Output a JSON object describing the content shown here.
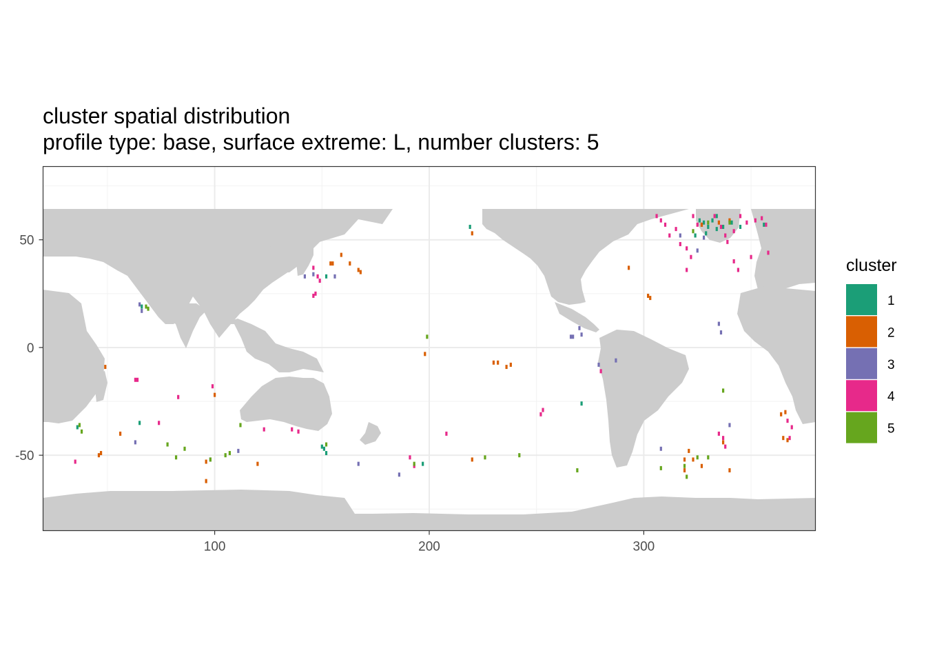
{
  "chart_data": {
    "type": "scatter",
    "title": "cluster spatial distribution",
    "subtitle": "profile type: base, surface extreme: L, number clusters: 5",
    "xlabel": "",
    "ylabel": "",
    "xlim": [
      20,
      380
    ],
    "ylim": [
      -85,
      84
    ],
    "x_ticks": [
      100,
      200,
      300
    ],
    "x_tick_labels": [
      "100",
      "200",
      "300"
    ],
    "y_ticks": [
      50,
      0,
      -50
    ],
    "y_tick_labels": [
      "50",
      "0",
      "-50"
    ],
    "grid": true,
    "background_map": "land masses in light grey (#cccccc)",
    "legend": {
      "title": "cluster",
      "position": "right",
      "entries": [
        {
          "label": "1",
          "color": "#1b9e77"
        },
        {
          "label": "2",
          "color": "#d95f02"
        },
        {
          "label": "3",
          "color": "#7570b3"
        },
        {
          "label": "4",
          "color": "#e7298a"
        },
        {
          "label": "5",
          "color": "#66a61e"
        }
      ]
    },
    "series": [
      {
        "name": "1",
        "points": [
          [
            66,
            19
          ],
          [
            150,
            -46
          ],
          [
            151,
            -47
          ],
          [
            152,
            -49
          ],
          [
            197,
            -54
          ],
          [
            219,
            56
          ],
          [
            271,
            -26
          ],
          [
            326,
            59
          ],
          [
            327,
            57
          ],
          [
            328,
            58
          ],
          [
            330,
            56
          ],
          [
            332,
            59
          ],
          [
            334,
            61
          ],
          [
            337,
            56
          ],
          [
            341,
            58
          ],
          [
            345,
            56
          ],
          [
            356,
            57
          ],
          [
            324,
            52
          ],
          [
            329,
            53
          ],
          [
            334,
            55
          ],
          [
            36,
            -37
          ],
          [
            65,
            -35
          ],
          [
            152,
            33
          ]
        ]
      },
      {
        "name": "2",
        "points": [
          [
            49,
            -9
          ],
          [
            46,
            -50
          ],
          [
            47,
            -49
          ],
          [
            56,
            -40
          ],
          [
            96,
            -53
          ],
          [
            96,
            -62
          ],
          [
            100,
            -22
          ],
          [
            120,
            -54
          ],
          [
            154,
            39
          ],
          [
            155,
            39
          ],
          [
            159,
            43
          ],
          [
            163,
            39
          ],
          [
            167,
            36
          ],
          [
            168,
            35
          ],
          [
            198,
            -3
          ],
          [
            220,
            53
          ],
          [
            220,
            -52
          ],
          [
            230,
            -7
          ],
          [
            232,
            -7
          ],
          [
            236,
            -9
          ],
          [
            238,
            -8
          ],
          [
            293,
            37
          ],
          [
            302,
            24
          ],
          [
            303,
            23
          ],
          [
            319,
            -52
          ],
          [
            321,
            -48
          ],
          [
            323,
            -52
          ],
          [
            319,
            -57
          ],
          [
            327,
            -55
          ],
          [
            337,
            -44
          ],
          [
            340,
            -57
          ],
          [
            364,
            -31
          ],
          [
            366,
            -30
          ],
          [
            365,
            -42
          ],
          [
            367,
            -43
          ],
          [
            327,
            57
          ],
          [
            340,
            59
          ],
          [
            335,
            58
          ]
        ]
      },
      {
        "name": "3",
        "points": [
          [
            65,
            20
          ],
          [
            66,
            17
          ],
          [
            63,
            -44
          ],
          [
            98,
            -52
          ],
          [
            111,
            -48
          ],
          [
            142,
            33
          ],
          [
            146,
            34
          ],
          [
            156,
            33
          ],
          [
            167,
            -54
          ],
          [
            186,
            -59
          ],
          [
            266,
            5
          ],
          [
            267,
            5
          ],
          [
            270,
            9
          ],
          [
            271,
            6
          ],
          [
            279,
            -8
          ],
          [
            287,
            -6
          ],
          [
            308,
            -47
          ],
          [
            335,
            11
          ],
          [
            336,
            7
          ],
          [
            317,
            52
          ],
          [
            325,
            45
          ],
          [
            340,
            -36
          ],
          [
            328,
            51
          ]
        ]
      },
      {
        "name": "4",
        "points": [
          [
            35,
            -53
          ],
          [
            63,
            -15
          ],
          [
            64,
            -15
          ],
          [
            74,
            -35
          ],
          [
            83,
            -23
          ],
          [
            99,
            -18
          ],
          [
            123,
            -38
          ],
          [
            136,
            -38
          ],
          [
            139,
            -39
          ],
          [
            146,
            24
          ],
          [
            147,
            25
          ],
          [
            148,
            33
          ],
          [
            149,
            31
          ],
          [
            146,
            37
          ],
          [
            208,
            -40
          ],
          [
            191,
            -51
          ],
          [
            193,
            -55
          ],
          [
            252,
            -31
          ],
          [
            253,
            -29
          ],
          [
            280,
            -11
          ],
          [
            306,
            61
          ],
          [
            308,
            59
          ],
          [
            310,
            57
          ],
          [
            312,
            52
          ],
          [
            315,
            55
          ],
          [
            317,
            48
          ],
          [
            320,
            46
          ],
          [
            322,
            42
          ],
          [
            323,
            61
          ],
          [
            325,
            57
          ],
          [
            333,
            61
          ],
          [
            336,
            56
          ],
          [
            338,
            52
          ],
          [
            339,
            49
          ],
          [
            342,
            54
          ],
          [
            345,
            61
          ],
          [
            348,
            58
          ],
          [
            352,
            59
          ],
          [
            355,
            60
          ],
          [
            357,
            57
          ],
          [
            335,
            -40
          ],
          [
            337,
            -42
          ],
          [
            338,
            -46
          ],
          [
            342,
            40
          ],
          [
            350,
            42
          ],
          [
            358,
            44
          ],
          [
            367,
            -34
          ],
          [
            369,
            -37
          ],
          [
            368,
            -42
          ],
          [
            320,
            36
          ],
          [
            344,
            36
          ]
        ]
      },
      {
        "name": "5",
        "points": [
          [
            37,
            -36
          ],
          [
            38,
            -39
          ],
          [
            68,
            19
          ],
          [
            69,
            18
          ],
          [
            78,
            -45
          ],
          [
            82,
            -51
          ],
          [
            86,
            -47
          ],
          [
            98,
            -52
          ],
          [
            105,
            -50
          ],
          [
            107,
            -49
          ],
          [
            112,
            -36
          ],
          [
            152,
            -45
          ],
          [
            193,
            -54
          ],
          [
            199,
            5
          ],
          [
            226,
            -51
          ],
          [
            242,
            -50
          ],
          [
            269,
            -57
          ],
          [
            308,
            -56
          ],
          [
            319,
            -55
          ],
          [
            320,
            -60
          ],
          [
            325,
            -51
          ],
          [
            330,
            -51
          ],
          [
            337,
            -20
          ],
          [
            323,
            54
          ],
          [
            330,
            58
          ],
          [
            340,
            58
          ]
        ]
      }
    ]
  }
}
